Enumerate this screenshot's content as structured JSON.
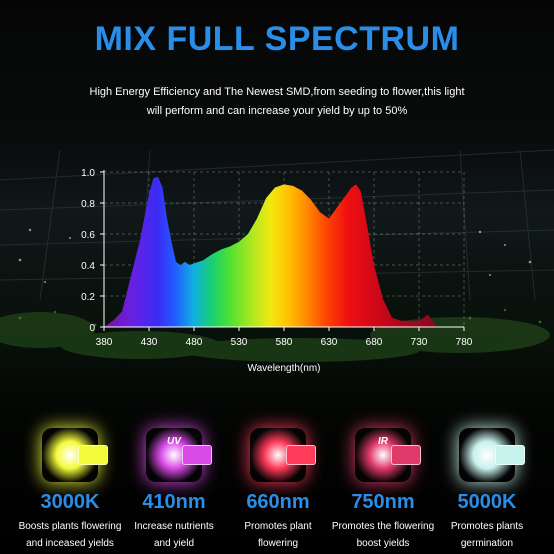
{
  "header": {
    "title": "MIX FULL SPECTRUM",
    "subtitle_line1": "High Energy Efficiency and The Newest SMD,from seeding to flower,this light",
    "subtitle_line2": "will perform and can increase your yield by up to 50%"
  },
  "chart_data": {
    "type": "area",
    "title": "",
    "xlabel": "Wavelength(nm)",
    "ylabel": "",
    "xlim": [
      380,
      780
    ],
    "ylim": [
      0,
      1.0
    ],
    "xticks": [
      "380",
      "430",
      "480",
      "530",
      "580",
      "630",
      "680",
      "730",
      "780"
    ],
    "yticks": [
      "0",
      "0.2",
      "0.4",
      "0.6",
      "0.8",
      "1.0"
    ],
    "grid": true,
    "legend": "none",
    "series": [
      {
        "x": [
          380,
          390,
          400,
          410,
          420,
          430,
          435,
          440,
          445,
          450,
          455,
          460,
          465,
          470,
          475,
          480,
          490,
          500,
          510,
          520,
          530,
          540,
          550,
          560,
          570,
          580,
          590,
          600,
          610,
          620,
          630,
          640,
          650,
          655,
          660,
          665,
          670,
          680,
          690,
          700,
          710,
          720,
          730,
          740,
          750
        ],
        "y": [
          0.0,
          0.04,
          0.1,
          0.33,
          0.56,
          0.86,
          0.96,
          0.97,
          0.9,
          0.7,
          0.55,
          0.42,
          0.4,
          0.42,
          0.4,
          0.41,
          0.43,
          0.47,
          0.5,
          0.52,
          0.55,
          0.6,
          0.7,
          0.83,
          0.9,
          0.92,
          0.91,
          0.88,
          0.82,
          0.74,
          0.7,
          0.78,
          0.86,
          0.9,
          0.92,
          0.88,
          0.73,
          0.4,
          0.18,
          0.06,
          0.04,
          0.04,
          0.04,
          0.08,
          0.0
        ]
      }
    ]
  },
  "features": [
    {
      "value": "3000K",
      "chip_label": "",
      "desc1": "Boosts plants flowering",
      "desc2": "and inceased yields",
      "color": "#f3fb3a"
    },
    {
      "value": "410nm",
      "chip_label": "UV",
      "desc1": "Increase nutrients",
      "desc2": "and yield",
      "color": "#d84ae8"
    },
    {
      "value": "660nm",
      "chip_label": "",
      "desc1": "Promotes plant",
      "desc2": "flowering",
      "color": "#ff3a5a"
    },
    {
      "value": "750nm",
      "chip_label": "IR",
      "desc1": "Promotes the flowering",
      "desc2": "boost yields",
      "color": "#e03a6a"
    },
    {
      "value": "5000K",
      "chip_label": "",
      "desc1": "Promotes plants",
      "desc2": "germination",
      "color": "#c8f2ec"
    }
  ]
}
